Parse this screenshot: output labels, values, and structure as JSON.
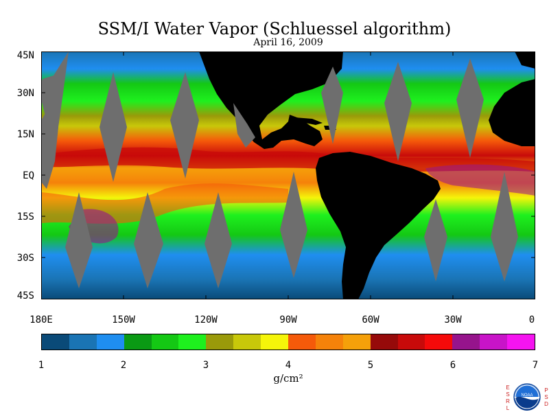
{
  "title": "SSM/I Water Vapor (Schluessel algorithm)",
  "subtitle": "April 16, 2009",
  "y_axis_labels": [
    "45N",
    "30N",
    "15N",
    "EQ",
    "15S",
    "30S",
    "45S"
  ],
  "x_axis_labels": [
    "180E",
    "150W",
    "120W",
    "90W",
    "60W",
    "30W",
    "0"
  ],
  "colorbar": {
    "colors": [
      "#0a4a78",
      "#1a74b4",
      "#1f8ef0",
      "#0a9a14",
      "#14c814",
      "#1ef01e",
      "#9a9a0a",
      "#c8c80a",
      "#f5f50a",
      "#f55a0a",
      "#f5820a",
      "#f5a00a",
      "#960a0a",
      "#c80a0a",
      "#f50a0a",
      "#96148c",
      "#c814c8",
      "#f514f0"
    ],
    "tick_labels": [
      "1",
      "2",
      "3",
      "4",
      "5",
      "6",
      "7"
    ],
    "unit": "g/cm²"
  },
  "logo": {
    "left_text": [
      "E",
      "S",
      "R",
      "L"
    ],
    "right_text": [
      "P",
      "S",
      "D"
    ],
    "center_text": "NOAA"
  },
  "map": {
    "land_color": "#000000",
    "swath_gap_color": "#6e6e6e",
    "lat_range": [
      -45,
      45
    ],
    "lon_range": [
      -180,
      0
    ]
  }
}
